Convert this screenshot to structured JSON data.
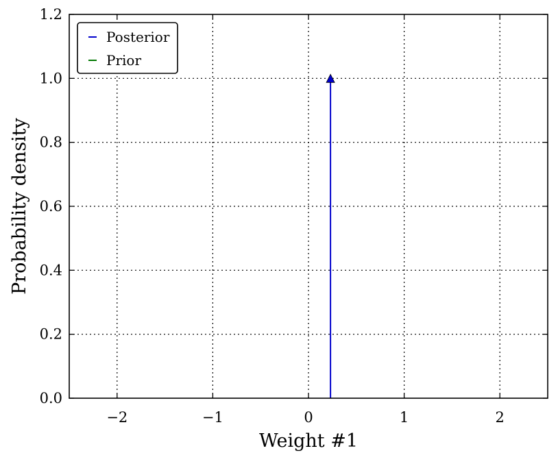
{
  "chart_data": {
    "type": "line",
    "title": "",
    "xlabel": "Weight #1",
    "ylabel": "Probability density",
    "xlim": [
      -2.5,
      2.5
    ],
    "ylim": [
      0.0,
      1.2
    ],
    "xticks": [
      {
        "value": -2,
        "label": "−2"
      },
      {
        "value": -1,
        "label": "−1"
      },
      {
        "value": 0,
        "label": "0"
      },
      {
        "value": 1,
        "label": "1"
      },
      {
        "value": 2,
        "label": "2"
      }
    ],
    "yticks": [
      {
        "value": 0.0,
        "label": "0.0"
      },
      {
        "value": 0.2,
        "label": "0.2"
      },
      {
        "value": 0.4,
        "label": "0.4"
      },
      {
        "value": 0.6,
        "label": "0.6"
      },
      {
        "value": 0.8,
        "label": "0.8"
      },
      {
        "value": 1.0,
        "label": "1.0"
      },
      {
        "value": 1.2,
        "label": "1.2"
      }
    ],
    "grid": true,
    "grid_style": "dotted",
    "legend_position": "top-left",
    "series": [
      {
        "name": "Posterior",
        "color": "#0000cc",
        "style": "arrow",
        "x": [
          0.23,
          0.23
        ],
        "y": [
          0.0,
          1.0
        ]
      },
      {
        "name": "Prior",
        "color": "#007700",
        "style": "line",
        "x": [],
        "y": []
      }
    ]
  }
}
